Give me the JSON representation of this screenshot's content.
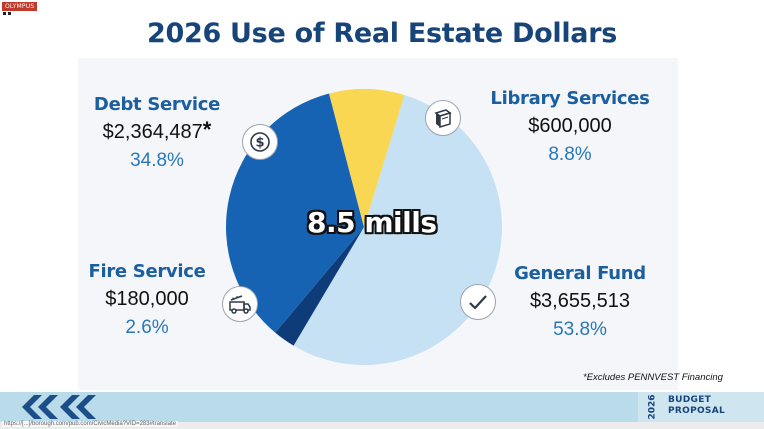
{
  "corner_tag": "OLYMPUS",
  "chart_data": {
    "type": "pie",
    "title": "2026 Use of Real Estate Dollars",
    "center_label": "8.5 mills",
    "slices": [
      {
        "name": "General Fund",
        "amount": "$3,655,513",
        "percent_label": "53.8%",
        "value": 53.8,
        "color": "#c5e1f3"
      },
      {
        "name": "Fire Service",
        "amount": "$180,000",
        "percent_label": "2.6%",
        "value": 2.6,
        "color": "#0e3c78"
      },
      {
        "name": "Debt Service",
        "amount": "$2,364,487",
        "amount_suffix": "*",
        "percent_label": "34.8%",
        "value": 34.8,
        "color": "#1763b3"
      },
      {
        "name": "Library Services",
        "amount": "$600,000",
        "percent_label": "8.8%",
        "value": 8.8,
        "color": "#f9d752"
      }
    ],
    "start_angle_deg": 73,
    "footnote": "*Excludes PENNVEST Financing"
  },
  "icons": {
    "debt": "dollar-icon",
    "library": "book-icon",
    "fire": "fire-truck-icon",
    "general": "checkmark-icon"
  },
  "footer": {
    "year": "2026",
    "line1": "BUDGET",
    "line2": "PROPOSAL"
  },
  "status_url": "https://[...]/borough.com/pub.com/CivicMedia?VID=283#translate"
}
